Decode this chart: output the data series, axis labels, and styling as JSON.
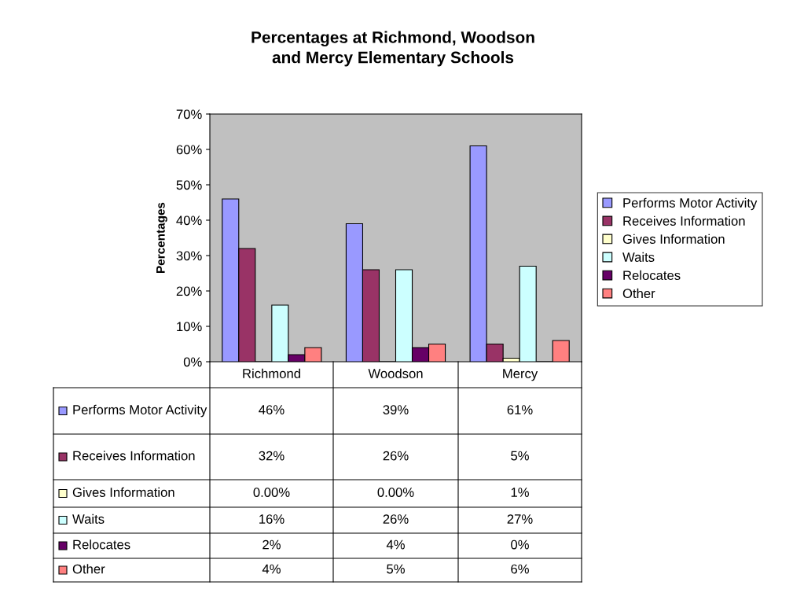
{
  "chart_data": {
    "type": "bar",
    "title": "Percentages at Richmond, Woodson\nand Mercy Elementary Schools",
    "ylabel": "Percentages",
    "categories": [
      "Richmond",
      "Woodson",
      "Mercy"
    ],
    "series": [
      {
        "name": "Performs Motor Activity",
        "color": "#9999ff",
        "values": [
          46,
          39,
          61
        ],
        "value_labels": [
          "46%",
          "39%",
          "61%"
        ]
      },
      {
        "name": "Receives Information",
        "color": "#993366",
        "values": [
          32,
          26,
          5
        ],
        "value_labels": [
          "32%",
          "26%",
          "5%"
        ]
      },
      {
        "name": "Gives Information",
        "color": "#ffffcc",
        "values": [
          0,
          0,
          1
        ],
        "value_labels": [
          "0.00%",
          "0.00%",
          "1%"
        ]
      },
      {
        "name": "Waits",
        "color": "#ccffff",
        "values": [
          16,
          26,
          27
        ],
        "value_labels": [
          "16%",
          "26%",
          "27%"
        ]
      },
      {
        "name": "Relocates",
        "color": "#660066",
        "values": [
          2,
          4,
          0
        ],
        "value_labels": [
          "2%",
          "4%",
          "0%"
        ]
      },
      {
        "name": "Other",
        "color": "#ff8080",
        "values": [
          4,
          5,
          6
        ],
        "value_labels": [
          "4%",
          "5%",
          "6%"
        ]
      }
    ],
    "ylim": [
      0,
      70
    ],
    "yticks": [
      {
        "value": 0,
        "label": "0%"
      },
      {
        "value": 10,
        "label": "10%"
      },
      {
        "value": 20,
        "label": "20%"
      },
      {
        "value": 30,
        "label": "30%"
      },
      {
        "value": 40,
        "label": "40%"
      },
      {
        "value": 50,
        "label": "50%"
      },
      {
        "value": 60,
        "label": "60%"
      },
      {
        "value": 70,
        "label": "70%"
      }
    ],
    "grid": false,
    "legend": "right"
  }
}
